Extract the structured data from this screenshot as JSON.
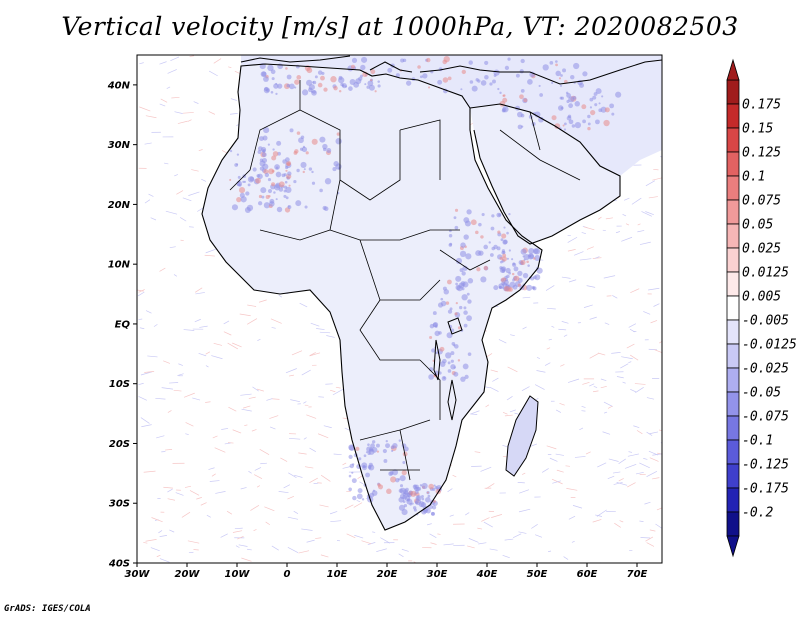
{
  "title": "Vertical velocity [m/s] at 1000hPa, VT: 2020082503",
  "credit": "GrADS: IGES/COLA",
  "map": {
    "lon_range": [
      -30,
      75
    ],
    "lat_range": [
      -40,
      45
    ],
    "lon_ticks": [
      {
        "value": -30,
        "label": "30W"
      },
      {
        "value": -20,
        "label": "20W"
      },
      {
        "value": -10,
        "label": "10W"
      },
      {
        "value": 0,
        "label": "0"
      },
      {
        "value": 10,
        "label": "10E"
      },
      {
        "value": 20,
        "label": "20E"
      },
      {
        "value": 30,
        "label": "30E"
      },
      {
        "value": 40,
        "label": "40E"
      },
      {
        "value": 50,
        "label": "50E"
      },
      {
        "value": 60,
        "label": "60E"
      },
      {
        "value": 70,
        "label": "70E"
      }
    ],
    "lat_ticks": [
      {
        "value": 40,
        "label": "40N"
      },
      {
        "value": 30,
        "label": "30N"
      },
      {
        "value": 20,
        "label": "20N"
      },
      {
        "value": 10,
        "label": "10N"
      },
      {
        "value": 0,
        "label": "EQ"
      },
      {
        "value": -10,
        "label": "10S"
      },
      {
        "value": -20,
        "label": "20S"
      },
      {
        "value": -30,
        "label": "30S"
      },
      {
        "value": -40,
        "label": "40S"
      }
    ]
  },
  "colorbar": {
    "labels": [
      "0.175",
      "0.15",
      "0.125",
      "0.1",
      "0.075",
      "0.05",
      "0.025",
      "0.0125",
      "0.005",
      "-0.005",
      "-0.0125",
      "-0.025",
      "-0.05",
      "-0.075",
      "-0.1",
      "-0.125",
      "-0.175",
      "-0.2"
    ],
    "colors": [
      "#a01c1c",
      "#c42a2a",
      "#d84646",
      "#e26262",
      "#ea7e7e",
      "#f09a9a",
      "#f6b6b6",
      "#fad2d2",
      "#fde9e9",
      "#ffffff",
      "#e4e4fb",
      "#c9c9f5",
      "#aeaef0",
      "#9393ea",
      "#7777e2",
      "#5b5bda",
      "#3f3fcc",
      "#2323b4",
      "#10108a"
    ]
  }
}
